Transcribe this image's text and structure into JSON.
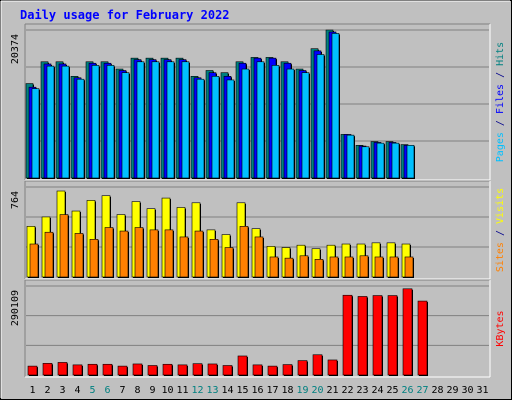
{
  "chart_data": [
    {
      "type": "bar",
      "title": "Daily usage for February 2022",
      "ylabel": "Pages / Files / Hits",
      "ylabel_parts": [
        {
          "text": "Pages",
          "color": "#00c0ff"
        },
        {
          "text": " / ",
          "color": "#00008b"
        },
        {
          "text": "Files",
          "color": "#0000ff"
        },
        {
          "text": " / ",
          "color": "#00008b"
        },
        {
          "text": "Hits",
          "color": "#008080"
        }
      ],
      "max_label": "20374",
      "ylim": [
        0,
        20374
      ],
      "series": [
        {
          "name": "Hits",
          "color": "#008080",
          "values": [
            13000,
            16000,
            16000,
            14000,
            16000,
            16000,
            15000,
            16500,
            16500,
            16500,
            16500,
            14000,
            14800,
            14500,
            16000,
            16600,
            16600,
            16000,
            15000,
            17800,
            20374,
            6000,
            4500,
            5000,
            5000,
            4600,
            null,
            null,
            null,
            null,
            null
          ]
        },
        {
          "name": "Files",
          "color": "#0000ff",
          "values": [
            12500,
            15700,
            15700,
            13800,
            15800,
            15800,
            14800,
            16300,
            16300,
            16300,
            16300,
            13800,
            14500,
            14000,
            15800,
            16500,
            16500,
            15800,
            14800,
            17500,
            20100,
            6000,
            4400,
            4900,
            4900,
            4500,
            null,
            null,
            null,
            null,
            null
          ]
        },
        {
          "name": "Pages",
          "color": "#00c0ff",
          "values": [
            12300,
            15400,
            15400,
            13600,
            15500,
            15500,
            14500,
            16000,
            16000,
            16000,
            16000,
            13600,
            14000,
            13500,
            15000,
            16000,
            15500,
            15000,
            14500,
            17000,
            19900,
            5900,
            4300,
            4800,
            4800,
            4500,
            null,
            null,
            null,
            null,
            null
          ]
        }
      ]
    },
    {
      "type": "bar",
      "ylabel": "Sites / Visits",
      "ylabel_parts": [
        {
          "text": "Sites",
          "color": "#ff8000"
        },
        {
          "text": " / ",
          "color": "#00008b"
        },
        {
          "text": "Visits",
          "color": "#ffff00"
        }
      ],
      "max_label": "764",
      "ylim": [
        0,
        764
      ],
      "series": [
        {
          "name": "Visits",
          "color": "#ffff00",
          "values": [
            430,
            510,
            730,
            560,
            650,
            690,
            530,
            640,
            580,
            670,
            590,
            630,
            400,
            360,
            630,
            410,
            260,
            250,
            270,
            240,
            270,
            280,
            280,
            290,
            290,
            280,
            null,
            null,
            null,
            null,
            null
          ]
        },
        {
          "name": "Sites",
          "color": "#ff8000",
          "values": [
            280,
            380,
            530,
            370,
            320,
            420,
            390,
            420,
            400,
            400,
            340,
            390,
            320,
            250,
            430,
            340,
            170,
            160,
            180,
            150,
            170,
            170,
            180,
            170,
            170,
            170,
            null,
            null,
            null,
            null,
            null
          ]
        }
      ]
    },
    {
      "type": "bar",
      "ylabel": "KBytes",
      "ylabel_parts": [
        {
          "text": "KBytes",
          "color": "#ff0000"
        }
      ],
      "max_label": "290109",
      "ylim": [
        0,
        290109
      ],
      "series": [
        {
          "name": "KBytes",
          "color": "#ff0000",
          "values": [
            29000,
            38000,
            41000,
            33000,
            35000,
            35000,
            29000,
            36000,
            31000,
            35000,
            33000,
            37000,
            36000,
            31000,
            62000,
            33000,
            29000,
            34000,
            47000,
            66000,
            49000,
            260000,
            256000,
            259000,
            259000,
            281000,
            241000,
            null,
            null,
            null,
            null
          ]
        }
      ]
    }
  ],
  "x_labels": [
    {
      "text": "1",
      "weekend": false
    },
    {
      "text": "2",
      "weekend": false
    },
    {
      "text": "3",
      "weekend": false
    },
    {
      "text": "4",
      "weekend": false
    },
    {
      "text": "5",
      "weekend": true
    },
    {
      "text": "6",
      "weekend": true
    },
    {
      "text": "7",
      "weekend": false
    },
    {
      "text": "8",
      "weekend": false
    },
    {
      "text": "9",
      "weekend": false
    },
    {
      "text": "10",
      "weekend": false
    },
    {
      "text": "11",
      "weekend": false
    },
    {
      "text": "12",
      "weekend": true
    },
    {
      "text": "13",
      "weekend": true
    },
    {
      "text": "14",
      "weekend": false
    },
    {
      "text": "15",
      "weekend": false
    },
    {
      "text": "16",
      "weekend": false
    },
    {
      "text": "17",
      "weekend": false
    },
    {
      "text": "18",
      "weekend": false
    },
    {
      "text": "19",
      "weekend": true
    },
    {
      "text": "20",
      "weekend": true
    },
    {
      "text": "21",
      "weekend": false
    },
    {
      "text": "22",
      "weekend": false
    },
    {
      "text": "23",
      "weekend": false
    },
    {
      "text": "24",
      "weekend": false
    },
    {
      "text": "25",
      "weekend": false
    },
    {
      "text": "26",
      "weekend": true
    },
    {
      "text": "27",
      "weekend": true
    },
    {
      "text": "28",
      "weekend": false
    },
    {
      "text": "29",
      "weekend": false
    },
    {
      "text": "30",
      "weekend": false
    },
    {
      "text": "31",
      "weekend": false
    }
  ],
  "colors": {
    "background": "#c0c0c0",
    "plot_background": "#c0c0c0",
    "title": "#0000ff",
    "axis_text": "#000000",
    "weekend_text": "#008080",
    "grid": "#808080",
    "bar_shadow": "#000000"
  }
}
